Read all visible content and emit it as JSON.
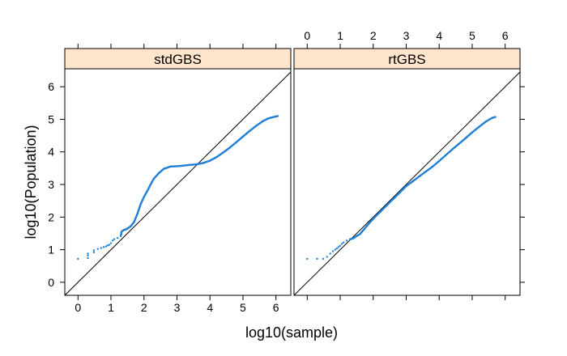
{
  "chart_data": {
    "type": "scatter",
    "xlabel": "log10(sample)",
    "ylabel": "log10(Population)",
    "xlim": [
      -0.4,
      6.45
    ],
    "ylim": [
      -0.4,
      6.55
    ],
    "x_ticks": [
      0,
      1,
      2,
      3,
      4,
      5,
      6
    ],
    "y_ticks": [
      0,
      1,
      2,
      3,
      4,
      5,
      6
    ],
    "x_tick_labels": [
      "0",
      "1",
      "2",
      "3",
      "4",
      "5",
      "6"
    ],
    "y_tick_labels": [
      "0",
      "1",
      "2",
      "3",
      "4",
      "5",
      "6"
    ],
    "grid": false,
    "reference_line": "y = x",
    "point_color": "#1f7fd6",
    "strip_color": "#ffe5cc",
    "panels": [
      {
        "strip_label": "stdGBS",
        "points": [
          [
            0.0,
            0.72
          ],
          [
            0.3,
            0.74
          ],
          [
            0.3,
            0.82
          ],
          [
            0.3,
            0.88
          ],
          [
            0.48,
            0.92
          ],
          [
            0.48,
            0.98
          ],
          [
            0.6,
            1.02
          ],
          [
            0.7,
            1.05
          ],
          [
            0.78,
            1.08
          ],
          [
            0.85,
            1.1
          ],
          [
            0.9,
            1.13
          ],
          [
            0.95,
            1.15
          ],
          [
            1.0,
            1.2
          ],
          [
            1.05,
            1.28
          ],
          [
            1.1,
            1.32
          ],
          [
            1.2,
            1.36
          ],
          [
            1.3,
            1.42
          ],
          [
            1.32,
            1.55
          ],
          [
            1.38,
            1.6
          ],
          [
            1.45,
            1.62
          ],
          [
            1.5,
            1.65
          ],
          [
            1.6,
            1.72
          ],
          [
            1.7,
            1.85
          ],
          [
            1.8,
            2.1
          ],
          [
            1.9,
            2.4
          ],
          [
            2.0,
            2.62
          ],
          [
            2.1,
            2.8
          ],
          [
            2.2,
            3.0
          ],
          [
            2.3,
            3.18
          ],
          [
            2.45,
            3.35
          ],
          [
            2.6,
            3.48
          ],
          [
            2.8,
            3.55
          ],
          [
            3.0,
            3.56
          ],
          [
            3.2,
            3.58
          ],
          [
            3.4,
            3.6
          ],
          [
            3.6,
            3.62
          ],
          [
            3.8,
            3.66
          ],
          [
            4.0,
            3.73
          ],
          [
            4.2,
            3.84
          ],
          [
            4.4,
            3.98
          ],
          [
            4.6,
            4.13
          ],
          [
            4.8,
            4.3
          ],
          [
            5.0,
            4.47
          ],
          [
            5.2,
            4.64
          ],
          [
            5.4,
            4.8
          ],
          [
            5.6,
            4.94
          ],
          [
            5.75,
            5.02
          ],
          [
            5.85,
            5.05
          ],
          [
            6.05,
            5.1
          ]
        ]
      },
      {
        "strip_label": "rtGBS",
        "points": [
          [
            0.0,
            0.72
          ],
          [
            0.3,
            0.72
          ],
          [
            0.48,
            0.72
          ],
          [
            0.6,
            0.78
          ],
          [
            0.7,
            0.88
          ],
          [
            0.78,
            0.95
          ],
          [
            0.85,
            1.0
          ],
          [
            0.9,
            1.04
          ],
          [
            0.95,
            1.08
          ],
          [
            1.0,
            1.12
          ],
          [
            1.05,
            1.18
          ],
          [
            1.1,
            1.22
          ],
          [
            1.2,
            1.28
          ],
          [
            1.3,
            1.32
          ],
          [
            1.4,
            1.35
          ],
          [
            1.5,
            1.42
          ],
          [
            1.6,
            1.48
          ],
          [
            1.7,
            1.6
          ],
          [
            1.8,
            1.72
          ],
          [
            2.0,
            1.95
          ],
          [
            2.2,
            2.15
          ],
          [
            2.4,
            2.35
          ],
          [
            2.6,
            2.55
          ],
          [
            2.8,
            2.75
          ],
          [
            3.0,
            2.95
          ],
          [
            3.2,
            3.1
          ],
          [
            3.4,
            3.25
          ],
          [
            3.6,
            3.4
          ],
          [
            3.8,
            3.55
          ],
          [
            4.0,
            3.72
          ],
          [
            4.2,
            3.9
          ],
          [
            4.4,
            4.08
          ],
          [
            4.6,
            4.25
          ],
          [
            4.8,
            4.42
          ],
          [
            5.0,
            4.6
          ],
          [
            5.2,
            4.76
          ],
          [
            5.4,
            4.92
          ],
          [
            5.5,
            4.98
          ],
          [
            5.6,
            5.04
          ],
          [
            5.7,
            5.07
          ]
        ]
      }
    ]
  }
}
